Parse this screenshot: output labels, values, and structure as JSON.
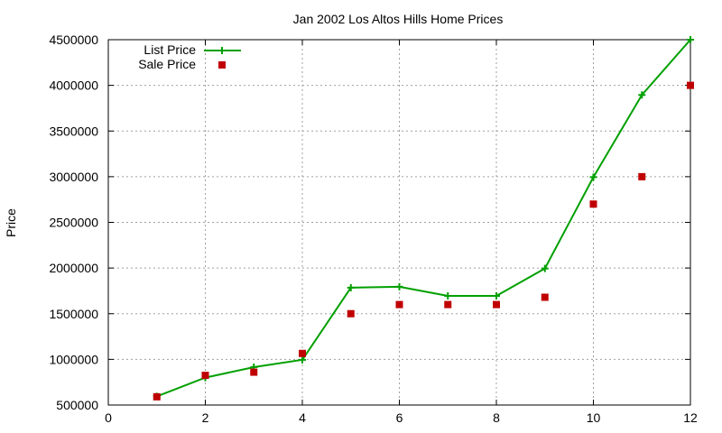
{
  "chart_data": {
    "type": "line",
    "title": "Jan 2002 Los Altos Hills Home Prices",
    "xlabel": "",
    "ylabel": "Price",
    "xlim": [
      0,
      12
    ],
    "ylim": [
      500000,
      4500000
    ],
    "xticks": [
      0,
      2,
      4,
      6,
      8,
      10,
      12
    ],
    "yticks": [
      500000,
      1000000,
      1500000,
      2000000,
      2500000,
      3000000,
      3500000,
      4000000,
      4500000
    ],
    "grid": true,
    "legend_position": "top-left",
    "series": [
      {
        "name": "List Price",
        "style": "line with plus markers",
        "color": "#00a000",
        "x": [
          1,
          2,
          3,
          4,
          5,
          6,
          7,
          8,
          9,
          10,
          11,
          12
        ],
        "values": [
          595000,
          800000,
          915000,
          995000,
          1785000,
          1795000,
          1695000,
          1695000,
          1995000,
          2995000,
          3895000,
          4500000
        ]
      },
      {
        "name": "Sale Price",
        "style": "square markers",
        "color": "#c00000",
        "x": [
          1,
          2,
          3,
          4,
          5,
          6,
          7,
          8,
          9,
          10,
          11,
          12
        ],
        "values": [
          590000,
          825000,
          860000,
          1065000,
          1500000,
          1600000,
          1600000,
          1600000,
          1680000,
          2700000,
          3000000,
          4000000
        ]
      }
    ]
  }
}
